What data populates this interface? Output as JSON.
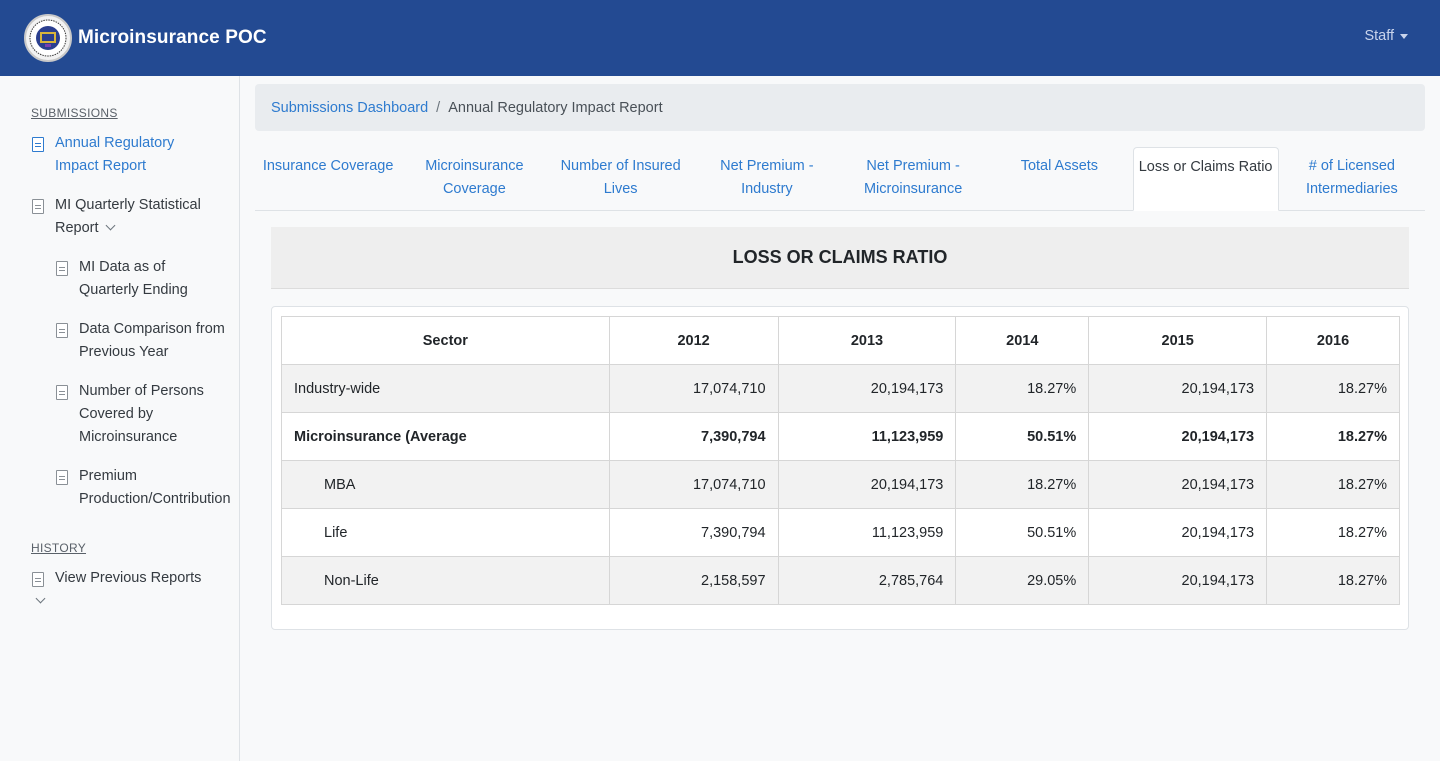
{
  "app": {
    "title": "Microinsurance POC",
    "user_menu": "Staff"
  },
  "sidebar": {
    "submissions_title": "SUBMISSIONS",
    "items": [
      {
        "label": "Annual Regulatory Impact Report"
      },
      {
        "label": "MI Quarterly Statistical Report"
      },
      {
        "label": "MI Data as of Quarterly Ending"
      },
      {
        "label": "Data Comparison from Previous Year"
      },
      {
        "label": "Number of Persons Covered by Microinsurance"
      },
      {
        "label": "Premium Production/Contribution"
      }
    ],
    "history_title": "HISTORY",
    "history_items": [
      {
        "label": "View Previous Reports"
      }
    ]
  },
  "breadcrumb": {
    "link": "Submissions Dashboard",
    "separator": "/",
    "current": "Annual Regulatory Impact Report"
  },
  "tabs": [
    {
      "label": "Insurance Coverage"
    },
    {
      "label": "Microinsurance Coverage"
    },
    {
      "label": "Number of Insured Lives"
    },
    {
      "label": "Net Premium - Industry"
    },
    {
      "label": "Net Premium - Microinsurance"
    },
    {
      "label": "Total Assets"
    },
    {
      "label": "Loss or Claims Ratio"
    },
    {
      "label": "# of Licensed Intermediaries"
    }
  ],
  "report": {
    "title": "LOSS OR CLAIMS RATIO",
    "headers": [
      "Sector",
      "2012",
      "2013",
      "2014",
      "2015",
      "2016"
    ],
    "rows": [
      {
        "cells": [
          "Industry-wide",
          "17,074,710",
          "20,194,173",
          "18.27%",
          "20,194,173",
          "18.27%"
        ]
      },
      {
        "cells": [
          "Microinsurance (Average",
          "7,390,794",
          "11,123,959",
          "50.51%",
          "20,194,173",
          "18.27%"
        ]
      },
      {
        "cells": [
          "MBA",
          "17,074,710",
          "20,194,173",
          "18.27%",
          "20,194,173",
          "18.27%"
        ]
      },
      {
        "cells": [
          "Life",
          "7,390,794",
          "11,123,959",
          "50.51%",
          "20,194,173",
          "18.27%"
        ]
      },
      {
        "cells": [
          "Non-Life",
          "2,158,597",
          "2,785,764",
          "29.05%",
          "20,194,173",
          "18.27%"
        ]
      }
    ]
  },
  "colors": {
    "navbar": "#234a92",
    "link": "#2e7bcf"
  }
}
